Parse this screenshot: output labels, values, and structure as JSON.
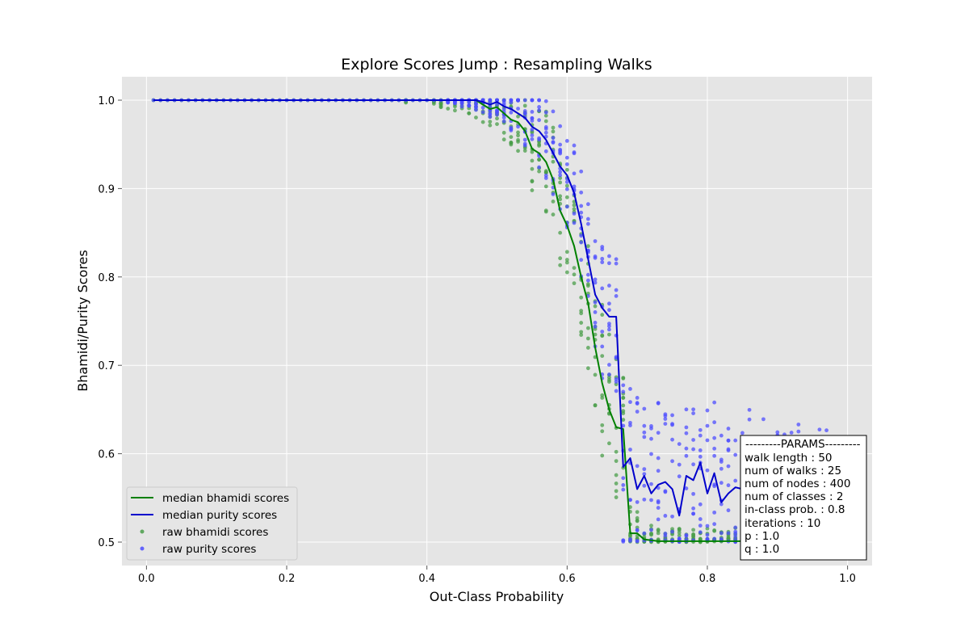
{
  "chart_data": {
    "type": "line",
    "title": "Explore Scores Jump : Resampling Walks",
    "xlabel": "Out-Class Probability",
    "ylabel": "Bhamidi/Purity Scores",
    "xlim": [
      -0.035,
      1.035
    ],
    "ylim": [
      0.4735,
      1.0265
    ],
    "xticks": [
      0.0,
      0.2,
      0.4,
      0.6,
      0.8,
      1.0
    ],
    "xtick_labels": [
      "0.0",
      "0.2",
      "0.4",
      "0.6",
      "0.8",
      "1.0"
    ],
    "yticks": [
      0.5,
      0.6,
      0.7,
      0.8,
      0.9,
      1.0
    ],
    "ytick_labels": [
      "0.5",
      "0.6",
      "0.7",
      "0.8",
      "0.9",
      "1.0"
    ],
    "grid": true,
    "background": "#e5e5e5",
    "legend_position": "lower-left",
    "x_start": 0.01,
    "x_step": 0.01,
    "series": [
      {
        "name": "median bhamidi scores",
        "kind": "line",
        "color": "#008000",
        "values": [
          1,
          1,
          1,
          1,
          1,
          1,
          1,
          1,
          1,
          1,
          1,
          1,
          1,
          1,
          1,
          1,
          1,
          1,
          1,
          1,
          1,
          1,
          1,
          1,
          1,
          1,
          1,
          1,
          1,
          1,
          1,
          1,
          1,
          1,
          1,
          1,
          1,
          1,
          1,
          1,
          1,
          1,
          1,
          1,
          1,
          1,
          1,
          0.995,
          0.99,
          0.992,
          0.985,
          0.978,
          0.975,
          0.965,
          0.945,
          0.94,
          0.93,
          0.91,
          0.875,
          0.858,
          0.835,
          0.8,
          0.77,
          0.72,
          0.68,
          0.65,
          0.63,
          0.628,
          0.51,
          0.51,
          0.503,
          0.502,
          0.501,
          0.501,
          0.501,
          0.501,
          0.501,
          0.501,
          0.501,
          0.501,
          0.501,
          0.501,
          0.501,
          0.501,
          0.501,
          0.501,
          0.501,
          0.501,
          0.501,
          0.501,
          0.501,
          0.501,
          0.501,
          0.501,
          0.501,
          0.501,
          0.501
        ]
      },
      {
        "name": "median purity scores",
        "kind": "line",
        "color": "#0000cc",
        "values": [
          1,
          1,
          1,
          1,
          1,
          1,
          1,
          1,
          1,
          1,
          1,
          1,
          1,
          1,
          1,
          1,
          1,
          1,
          1,
          1,
          1,
          1,
          1,
          1,
          1,
          1,
          1,
          1,
          1,
          1,
          1,
          1,
          1,
          1,
          1,
          1,
          1,
          1,
          1,
          1,
          1,
          1,
          1,
          1,
          1,
          1,
          1,
          0.998,
          0.995,
          0.998,
          0.993,
          0.99,
          0.985,
          0.98,
          0.97,
          0.965,
          0.955,
          0.94,
          0.925,
          0.915,
          0.895,
          0.86,
          0.82,
          0.78,
          0.765,
          0.755,
          0.755,
          0.585,
          0.595,
          0.56,
          0.575,
          0.555,
          0.565,
          0.568,
          0.56,
          0.53,
          0.575,
          0.57,
          0.59,
          0.555,
          0.578,
          0.545,
          0.555,
          0.562,
          0.56,
          0.58,
          0.565,
          0.562,
          0.548,
          0.545,
          0.55,
          0.55,
          0.545,
          0.548,
          0.545,
          0.55,
          0.545
        ]
      },
      {
        "name": "raw bhamidi scores",
        "kind": "scatter",
        "color": "#4a9e4a",
        "spread_max": [
          0,
          0,
          0,
          0,
          0,
          0,
          0,
          0,
          0,
          0,
          0,
          0,
          0,
          0,
          0,
          0,
          0,
          0,
          0,
          0,
          0,
          0,
          0,
          0,
          0,
          0,
          0,
          0,
          0,
          0,
          0,
          0,
          0,
          0,
          0,
          0,
          0.005,
          0,
          0,
          0,
          0.005,
          0.008,
          0.01,
          0.012,
          0.015,
          0.018,
          0.02,
          0.02,
          0.025,
          0.025,
          0.03,
          0.035,
          0.04,
          0.045,
          0.05,
          0.055,
          0.06,
          0.06,
          0.065,
          0.07,
          0.07,
          0.075,
          0.08,
          0.085,
          0.09,
          0.09,
          0.08,
          0.06,
          0.03,
          0.025,
          0.02,
          0.02,
          0.015,
          0.015,
          0.015,
          0.015,
          0.015,
          0.015,
          0.015,
          0.015,
          0.015,
          0.015,
          0.015,
          0.015,
          0.015,
          0.015,
          0.015,
          0.015,
          0.015,
          0.015,
          0.015,
          0.015,
          0.015,
          0.015,
          0.015,
          0.015,
          0.015
        ]
      },
      {
        "name": "raw purity scores",
        "kind": "scatter",
        "color": "#4d4dff",
        "spread_max": [
          0,
          0,
          0,
          0,
          0,
          0,
          0,
          0,
          0,
          0,
          0,
          0,
          0,
          0,
          0,
          0,
          0,
          0,
          0,
          0,
          0,
          0,
          0,
          0,
          0,
          0,
          0,
          0,
          0,
          0,
          0,
          0,
          0,
          0,
          0,
          0,
          0,
          0,
          0,
          0,
          0,
          0,
          0.003,
          0.005,
          0.008,
          0.01,
          0.012,
          0.012,
          0.015,
          0.015,
          0.02,
          0.025,
          0.03,
          0.035,
          0.04,
          0.045,
          0.05,
          0.05,
          0.055,
          0.06,
          0.065,
          0.07,
          0.07,
          0.075,
          0.08,
          0.085,
          0.09,
          0.1,
          0.11,
          0.11,
          0.1,
          0.1,
          0.1,
          0.09,
          0.09,
          0.09,
          0.09,
          0.09,
          0.1,
          0.1,
          0.09,
          0.09,
          0.09,
          0.08,
          0.08,
          0.08,
          0.08,
          0.08,
          0.08,
          0.08,
          0.08,
          0.08,
          0.09,
          0.09,
          0.1,
          0.1,
          0.1
        ]
      }
    ],
    "params_box": {
      "lines": [
        "---------PARAMS---------",
        "walk length : 50",
        "num of walks : 25",
        "num of nodes : 400",
        "num of classes : 2",
        "in-class prob. : 0.8",
        "iterations : 10",
        "p : 1.0",
        "q : 1.0"
      ]
    }
  }
}
